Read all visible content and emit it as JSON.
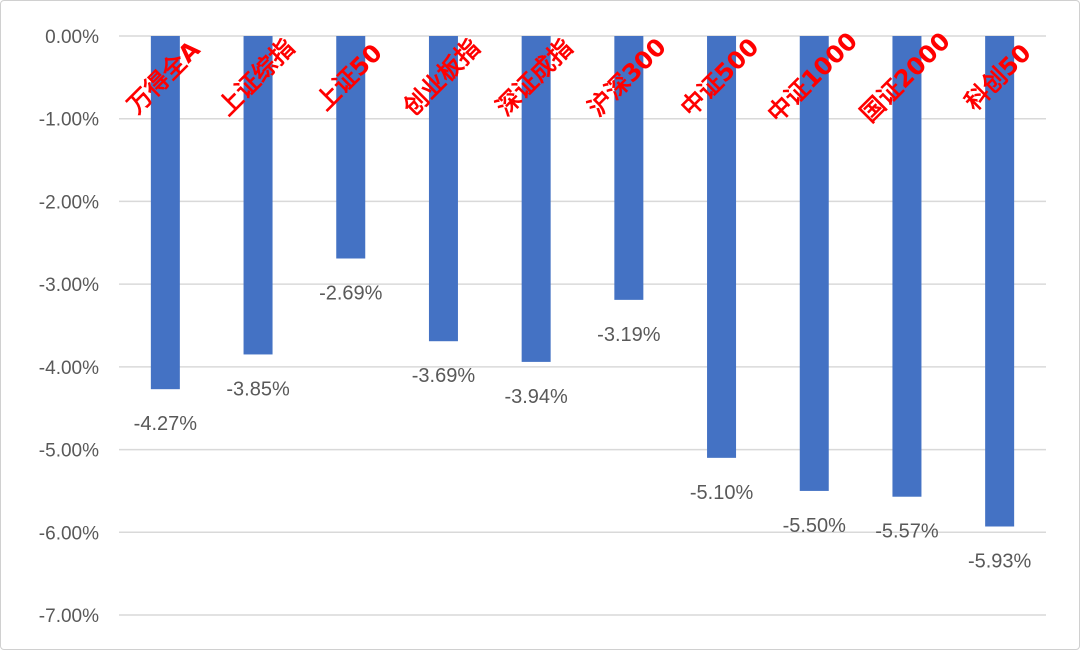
{
  "chart_data": {
    "type": "bar",
    "title": "",
    "xlabel": "",
    "ylabel": "",
    "categories": [
      "万得全A",
      "上证综指",
      "上证50",
      "创业板指",
      "深证成指",
      "沪深300",
      "中证500",
      "中证1000",
      "国证2000",
      "科创50"
    ],
    "values": [
      -4.27,
      -3.85,
      -2.69,
      -3.69,
      -3.94,
      -3.19,
      -5.1,
      -5.5,
      -5.57,
      -5.93
    ],
    "data_labels": [
      "-4.27%",
      "-3.85%",
      "-2.69%",
      "-3.69%",
      "-3.94%",
      "-3.19%",
      "-5.10%",
      "-5.50%",
      "-5.57%",
      "-5.93%"
    ],
    "ylim": [
      -7,
      0
    ],
    "y_ticks": [
      0,
      -1,
      -2,
      -3,
      -4,
      -5,
      -6,
      -7
    ],
    "y_tick_labels": [
      "0.00%",
      "-1.00%",
      "-2.00%",
      "-3.00%",
      "-4.00%",
      "-5.00%",
      "-6.00%",
      "-7.00%"
    ],
    "grid": true,
    "legend": "none",
    "colors": {
      "bar": "#4472c4",
      "category_label": "#ff0000",
      "data_label": "#595959",
      "grid": "#d9d9d9"
    }
  }
}
